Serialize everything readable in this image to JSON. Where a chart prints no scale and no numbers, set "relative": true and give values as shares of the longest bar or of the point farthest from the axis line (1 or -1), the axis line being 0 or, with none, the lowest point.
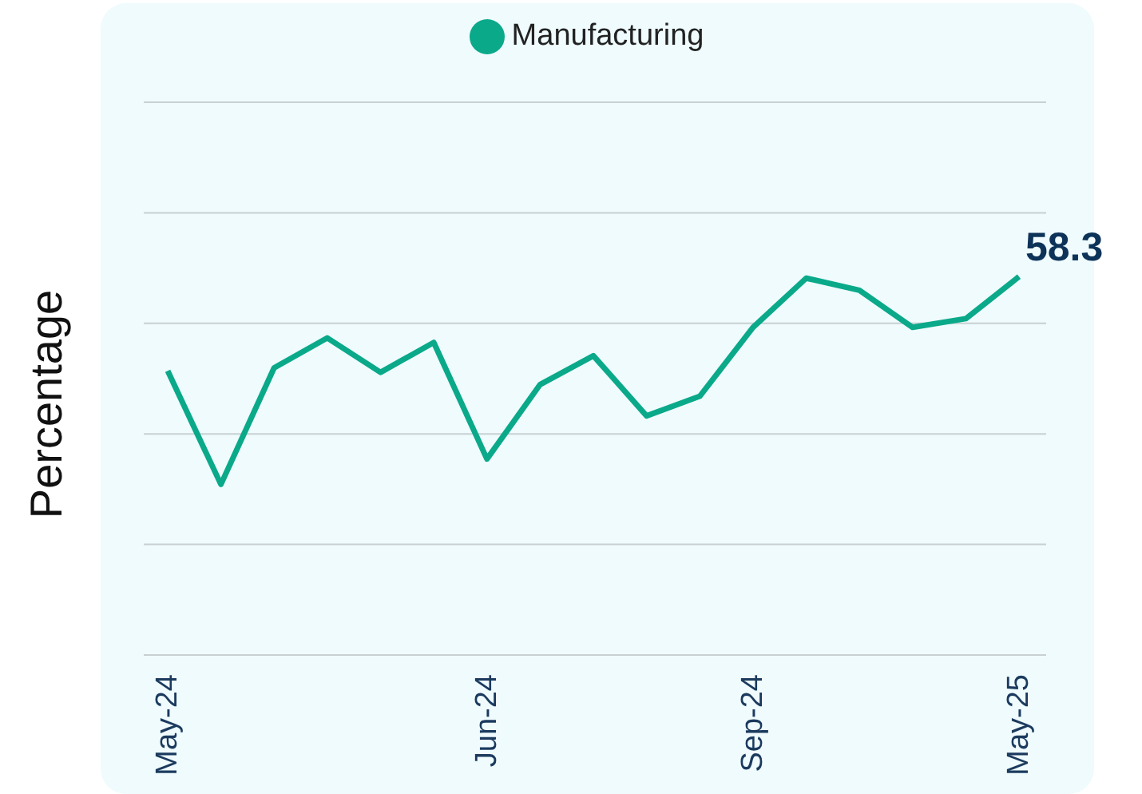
{
  "chart_data": {
    "type": "line",
    "ylabel": "Percentage",
    "relative": true,
    "grid": "y",
    "legend": "top",
    "marker": "none",
    "categories": [
      "May-24",
      null,
      null,
      null,
      null,
      null,
      "Jun-24",
      null,
      null,
      null,
      null,
      "Sep-24",
      null,
      null,
      null,
      null,
      "May-25"
    ],
    "series": [
      {
        "name": "Manufacturing",
        "color": "#0aa98a",
        "values": [
          0.751,
          0.451,
          0.759,
          0.838,
          0.747,
          0.826,
          0.518,
          0.715,
          0.791,
          0.632,
          0.684,
          0.866,
          0.996,
          0.964,
          0.866,
          0.889,
          1
        ]
      }
    ],
    "annotations": [
      "58.3"
    ]
  }
}
